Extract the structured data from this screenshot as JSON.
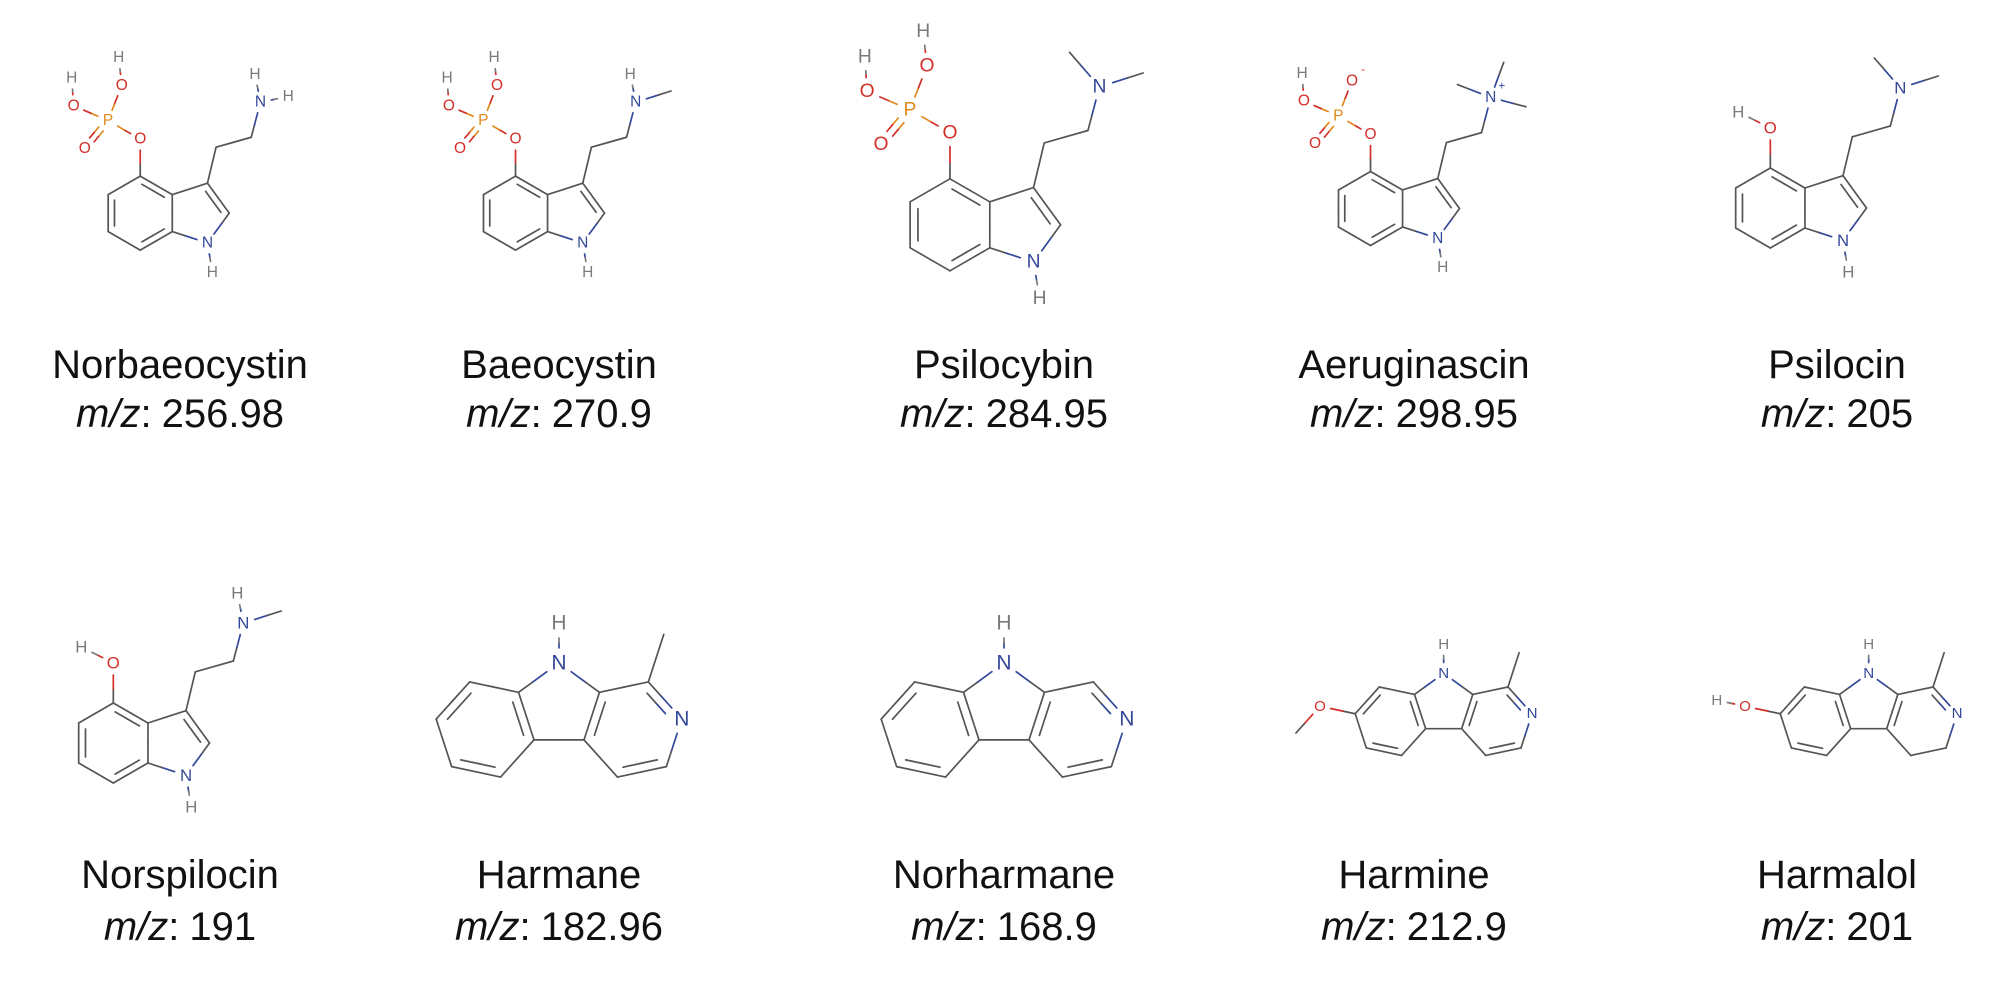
{
  "mz_label": "m/z",
  "separator": ":",
  "compounds": [
    {
      "name": "Norbaeocystin",
      "mz": 256.98,
      "atoms": [
        "O",
        "P",
        "O",
        "H",
        "O",
        "H",
        "O",
        "N",
        "H",
        "H",
        "N",
        "H"
      ]
    },
    {
      "name": "Baeocystin",
      "mz": 270.9,
      "atoms": [
        "O",
        "P",
        "O",
        "H",
        "O",
        "H",
        "O",
        "N",
        "H",
        "N",
        "H"
      ]
    },
    {
      "name": "Psilocybin",
      "mz": 284.95,
      "atoms": [
        "O",
        "P",
        "O",
        "H",
        "O",
        "H",
        "O",
        "N",
        "N",
        "H"
      ]
    },
    {
      "name": "Aeruginascin",
      "mz": 298.95,
      "atoms": [
        "O",
        "P",
        "O",
        "-",
        "O",
        "H",
        "O",
        "N",
        "+",
        "N",
        "H"
      ]
    },
    {
      "name": "Psilocin",
      "mz": 205,
      "atoms": [
        "O",
        "H",
        "N",
        "N",
        "H"
      ]
    },
    {
      "name": "Norspilocin",
      "mz": 191,
      "atoms": [
        "O",
        "H",
        "N",
        "H",
        "N",
        "H"
      ]
    },
    {
      "name": "Harmane",
      "mz": 182.96,
      "atoms": [
        "N",
        "H",
        "N"
      ]
    },
    {
      "name": "Norharmane",
      "mz": 168.9,
      "atoms": [
        "N",
        "H",
        "N"
      ]
    },
    {
      "name": "Harmine",
      "mz": 212.9,
      "atoms": [
        "N",
        "H",
        "N",
        "O"
      ]
    },
    {
      "name": "Harmalol",
      "mz": 201,
      "atoms": [
        "N",
        "H",
        "N",
        "O",
        "H"
      ]
    }
  ]
}
